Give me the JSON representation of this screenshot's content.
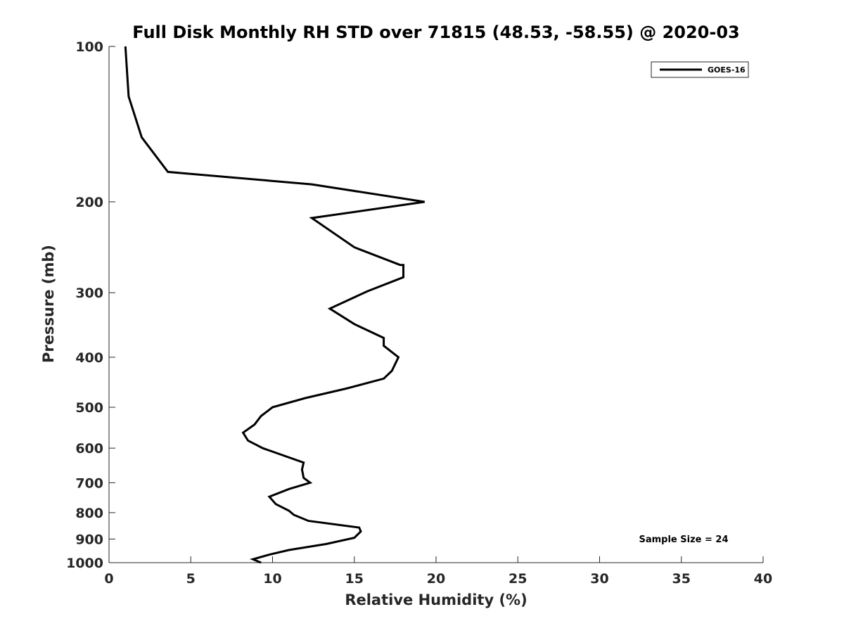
{
  "chart_data": {
    "type": "line",
    "title": "Full Disk Monthly RH STD over 71815 (48.53, -58.55) @ 2020-03",
    "xlabel": "Relative Humidity (%)",
    "ylabel": "Pressure (mb)",
    "xlim": [
      0,
      40
    ],
    "ylim": [
      100,
      1000
    ],
    "y_scale": "log",
    "y_reversed": true,
    "x_ticks": [
      0,
      5,
      10,
      15,
      20,
      25,
      30,
      35,
      40
    ],
    "x_tick_labels": [
      "0",
      "5",
      "10",
      "15",
      "20",
      "25",
      "30",
      "35",
      "40"
    ],
    "y_ticks": [
      100,
      200,
      300,
      400,
      500,
      600,
      700,
      800,
      900,
      1000
    ],
    "y_tick_labels": [
      "100",
      "200",
      "300",
      "400",
      "500",
      "600",
      "700",
      "800",
      "900",
      "1000"
    ],
    "grid": false,
    "legend_position": "top-right",
    "series": [
      {
        "name": "GOES-16",
        "color": "#000000",
        "points": [
          [
            1.0,
            100
          ],
          [
            1.2,
            125
          ],
          [
            2.0,
            150
          ],
          [
            3.6,
            175
          ],
          [
            12.4,
            185
          ],
          [
            19.3,
            200
          ],
          [
            12.4,
            215
          ],
          [
            15.0,
            245
          ],
          [
            17.8,
            265
          ],
          [
            18.0,
            265
          ],
          [
            18.0,
            280
          ],
          [
            15.8,
            298
          ],
          [
            13.5,
            322
          ],
          [
            15.0,
            345
          ],
          [
            16.8,
            367
          ],
          [
            16.8,
            380
          ],
          [
            17.7,
            400
          ],
          [
            17.3,
            425
          ],
          [
            16.8,
            440
          ],
          [
            14.5,
            460
          ],
          [
            12.0,
            480
          ],
          [
            10.0,
            500
          ],
          [
            9.3,
            520
          ],
          [
            8.9,
            540
          ],
          [
            8.2,
            560
          ],
          [
            8.5,
            580
          ],
          [
            9.4,
            600
          ],
          [
            11.9,
            640
          ],
          [
            11.8,
            660
          ],
          [
            11.9,
            685
          ],
          [
            12.3,
            700
          ],
          [
            11.0,
            720
          ],
          [
            9.8,
            745
          ],
          [
            10.2,
            770
          ],
          [
            11.0,
            793
          ],
          [
            11.3,
            808
          ],
          [
            12.2,
            830
          ],
          [
            15.3,
            855
          ],
          [
            15.4,
            870
          ],
          [
            15.0,
            895
          ],
          [
            13.3,
            920
          ],
          [
            11.0,
            945
          ],
          [
            9.8,
            965
          ],
          [
            8.8,
            985
          ],
          [
            9.3,
            1000
          ]
        ]
      }
    ],
    "annotations": [
      "Sample Size = 24"
    ]
  }
}
